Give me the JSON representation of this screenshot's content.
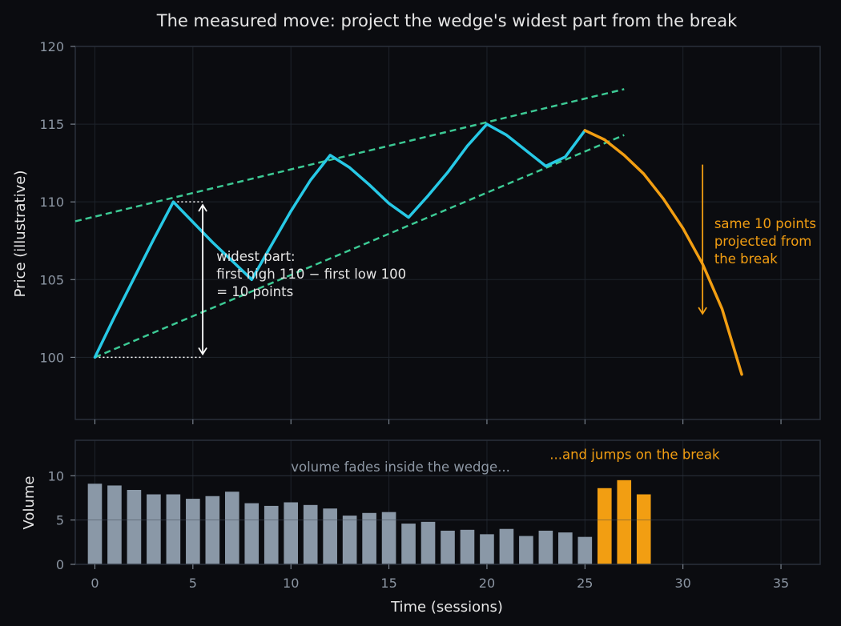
{
  "title": "The measured move: project the wedge's widest part from the break",
  "colors": {
    "background": "#0b0c10",
    "panel_border": "#2a303a",
    "grid": "#1e232b",
    "tick_text": "#8c96a3",
    "text": "#e6e6e6",
    "price": "#27c9e6",
    "break": "#f29e12",
    "trendline": "#3cc994",
    "volume_bar": "#8a98a7",
    "volume_break": "#f29e12"
  },
  "chart_data": [
    {
      "type": "line",
      "ylabel": "Price (illustrative)",
      "ylim": [
        96,
        120
      ],
      "yticks": [
        100,
        105,
        110,
        115,
        120
      ],
      "xlim": [
        -1,
        37
      ],
      "grid": true,
      "series": [
        {
          "role": "wedge-price",
          "points": [
            [
              0,
              100
            ],
            [
              1,
              102.6
            ],
            [
              2,
              105.1
            ],
            [
              3,
              107.6
            ],
            [
              4,
              110
            ],
            [
              5,
              108.7
            ],
            [
              6,
              107.4
            ],
            [
              7,
              106.2
            ],
            [
              8,
              105
            ],
            [
              9,
              107.2
            ],
            [
              10,
              109.4
            ],
            [
              11,
              111.4
            ],
            [
              12,
              113
            ],
            [
              13,
              112.2
            ],
            [
              14,
              111.1
            ],
            [
              15,
              109.9
            ],
            [
              16,
              109
            ],
            [
              17,
              110.4
            ],
            [
              18,
              111.9
            ],
            [
              19,
              113.6
            ],
            [
              20,
              115
            ],
            [
              21,
              114.3
            ],
            [
              22,
              113.3
            ],
            [
              23,
              112.3
            ],
            [
              24,
              112.9
            ],
            [
              25,
              114.6
            ]
          ]
        },
        {
          "role": "breakdown",
          "points": [
            [
              25,
              114.6
            ],
            [
              26,
              114
            ],
            [
              27,
              113
            ],
            [
              28,
              111.8
            ],
            [
              29,
              110.2
            ],
            [
              30,
              108.3
            ],
            [
              31,
              106
            ],
            [
              32,
              103.1
            ],
            [
              33,
              98.9
            ]
          ]
        }
      ],
      "trendlines": [
        {
          "role": "upper",
          "x": [
            -1,
            27
          ],
          "y": [
            108.75,
            117.25
          ]
        },
        {
          "role": "lower",
          "x": [
            0,
            27
          ],
          "y": [
            100,
            114.3
          ]
        }
      ],
      "reference_lines": [
        {
          "y": 110,
          "x": [
            4,
            5.5
          ]
        },
        {
          "y": 100,
          "x": [
            0,
            5.5
          ]
        }
      ],
      "measure_arrow": {
        "x": 5.5,
        "y": [
          100.2,
          109.8
        ]
      },
      "projection_arrow": {
        "x": 31,
        "y": [
          112.4,
          102.8
        ]
      },
      "annotations": [
        {
          "role": "widest",
          "lines": [
            "widest part:",
            "first high 110 − first low 100",
            "= 10 points"
          ],
          "x": 6.2,
          "y": 106.2
        },
        {
          "role": "projection",
          "lines": [
            "same 10 points",
            "projected from",
            "the break"
          ],
          "x": 31.6,
          "y": 108.3
        }
      ]
    },
    {
      "type": "bar",
      "ylabel": "Volume",
      "xlabel": "Time (sessions)",
      "ylim": [
        0,
        14
      ],
      "yticks": [
        0,
        5,
        10
      ],
      "xticks": [
        0,
        5,
        10,
        15,
        20,
        25,
        30,
        35
      ],
      "xlim": [
        -1,
        37
      ],
      "grid": true,
      "x": [
        0,
        1,
        2,
        3,
        4,
        5,
        6,
        7,
        8,
        9,
        10,
        11,
        12,
        13,
        14,
        15,
        16,
        17,
        18,
        19,
        20,
        21,
        22,
        23,
        24,
        25,
        26,
        27,
        28
      ],
      "values": [
        9.1,
        8.9,
        8.4,
        7.9,
        7.9,
        7.4,
        7.7,
        8.2,
        6.9,
        6.6,
        7.0,
        6.7,
        6.3,
        5.5,
        5.8,
        5.9,
        4.6,
        4.8,
        3.8,
        3.9,
        3.4,
        4.0,
        3.2,
        3.8,
        3.6,
        3.1,
        8.6,
        9.5,
        7.9
      ],
      "break_from_x": 26,
      "annotations": [
        {
          "role": "fade",
          "text": "volume fades inside the wedge...",
          "x": 10,
          "y": 11
        },
        {
          "role": "jump",
          "text": "...and jumps on the break",
          "x": 23.2,
          "y": 12.4
        }
      ]
    }
  ]
}
